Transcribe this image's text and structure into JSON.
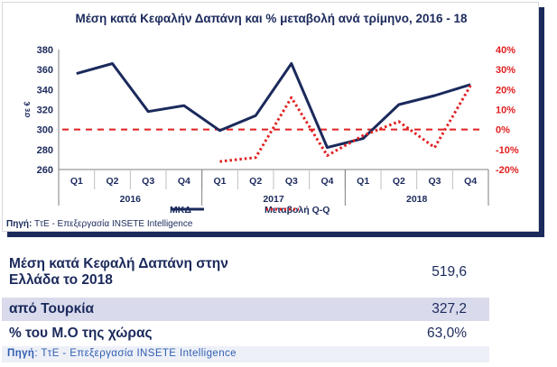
{
  "chart_data": {
    "type": "line",
    "title": "Μέση κατά Κεφαλήν Δαπάνη και % μεταβολή ανά τρίμηνο, 2016 - 18",
    "ylabel": "σε €",
    "y_left_ticks": [
      "380",
      "360",
      "340",
      "320",
      "300",
      "280",
      "260"
    ],
    "y_right_ticks": [
      "40%",
      "30%",
      "20%",
      "10%",
      "0%",
      "-10%",
      "-20%"
    ],
    "ylim_left": [
      260,
      380
    ],
    "ylim_right": [
      -20,
      40
    ],
    "categories": [
      "Q1",
      "Q2",
      "Q3",
      "Q4",
      "Q1",
      "Q2",
      "Q3",
      "Q4",
      "Q1",
      "Q2",
      "Q3",
      "Q4"
    ],
    "years": [
      "2016",
      "2017",
      "2018"
    ],
    "series": [
      {
        "name": "ΜΚΔ",
        "axis": "left",
        "color": "#1b2a5c",
        "style": "solid",
        "values": [
          356,
          366,
          318,
          324,
          299,
          314,
          366,
          282,
          291,
          325,
          334,
          345
        ]
      },
      {
        "name": "Μεταβολή Q-Q",
        "axis": "right",
        "color": "#e02020",
        "style": "dotted",
        "values": [
          null,
          null,
          null,
          null,
          -16,
          -14,
          16,
          -13,
          -3,
          4,
          -9,
          22
        ]
      }
    ],
    "reference_line": {
      "axis": "right",
      "value": 0,
      "color": "#e02020",
      "style": "dashed"
    },
    "legend": {
      "placement": "bottom"
    },
    "grid": false
  },
  "source": {
    "label": "Πηγή:",
    "text": " ΤτΕ - Επεξεργασία INSETE Intelligence"
  },
  "table": {
    "rows": [
      {
        "label_line1": "Μέση κατά Κεφαλή Δαπάνη στην",
        "label_line2": "Ελλάδα το 2018",
        "value": "519,6"
      },
      {
        "label": "από Τουρκία",
        "value": "327,2"
      },
      {
        "label": "% του Μ.Ο της χώρας",
        "value": "63,0%"
      }
    ],
    "source": {
      "label": "Πηγή",
      "text": ": ΤτΕ - Επεξεργασία INSETE Intelligence"
    }
  },
  "colors": {
    "navy": "#1b2a5c",
    "red": "#e02020",
    "band": "#d9dbec"
  }
}
